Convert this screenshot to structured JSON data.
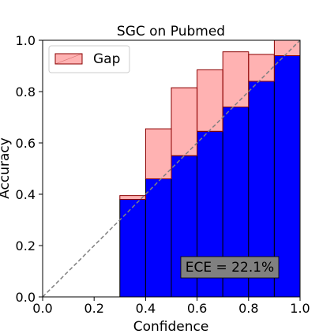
{
  "chart_data": {
    "type": "bar",
    "title": "SGC on Pubmed",
    "xlabel": "Confidence",
    "ylabel": "Accuracy",
    "xlim": [
      0.0,
      1.0
    ],
    "ylim": [
      0.0,
      1.0
    ],
    "xticks": [
      "0.0",
      "0.2",
      "0.4",
      "0.6",
      "0.8",
      "1.0"
    ],
    "yticks": [
      "0.0",
      "0.2",
      "0.4",
      "0.6",
      "0.8",
      "1.0"
    ],
    "grid": false,
    "legend": {
      "placement": "top-left",
      "entries": [
        "Gap"
      ]
    },
    "bin_width": 0.1,
    "bins": [
      {
        "x": 0.3,
        "accuracy": 0.38,
        "confidence": 0.395
      },
      {
        "x": 0.4,
        "accuracy": 0.46,
        "confidence": 0.655
      },
      {
        "x": 0.5,
        "accuracy": 0.55,
        "confidence": 0.815
      },
      {
        "x": 0.6,
        "accuracy": 0.645,
        "confidence": 0.885
      },
      {
        "x": 0.7,
        "accuracy": 0.74,
        "confidence": 0.955
      },
      {
        "x": 0.8,
        "accuracy": 0.84,
        "confidence": 0.945
      },
      {
        "x": 0.9,
        "accuracy": 0.94,
        "confidence": 1.0
      }
    ],
    "annotation": "ECE = 22.1%",
    "diagonal": true
  },
  "colors": {
    "bar": "#0000ff",
    "gap_fill": "#ff0000",
    "gap_alpha": 0.3,
    "gap_edge": "#8b0000",
    "diagonal": "#808080",
    "annotation_bg": "#808080"
  }
}
